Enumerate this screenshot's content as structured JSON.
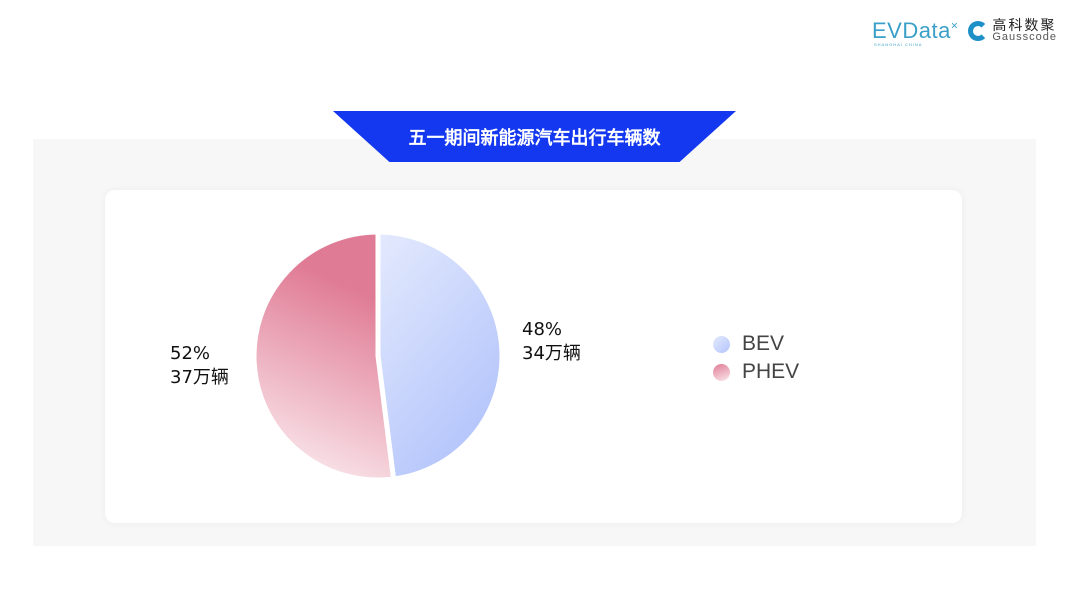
{
  "logos": {
    "evdata": "EVData",
    "evdata_sub": "SHANGHAI CHINA",
    "gausscode_cn": "高科数聚",
    "gausscode_en": "Gausscode"
  },
  "colors": {
    "banner": "#1438f0",
    "bev_light": "#e2e8fc",
    "bev_dark": "#b3c4fb",
    "phev_dark": "#e07a94",
    "phev_light": "#f8e4e9"
  },
  "chart_data": {
    "type": "pie",
    "title": "五一期间新能源汽车出行车辆数",
    "slices": [
      {
        "name": "BEV",
        "percent": 48,
        "value_label": "34万辆",
        "percent_label": "48%"
      },
      {
        "name": "PHEV",
        "percent": 52,
        "value_label": "37万辆",
        "percent_label": "52%"
      }
    ],
    "legend_position": "right"
  }
}
